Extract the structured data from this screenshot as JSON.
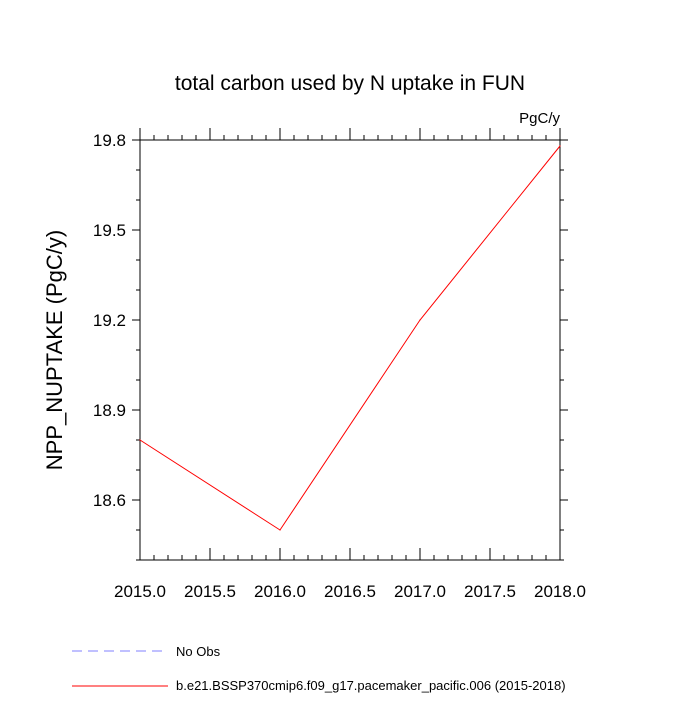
{
  "chart_data": {
    "type": "line",
    "title": "total carbon used by N uptake in FUN",
    "units_label": "PgC/y",
    "ylabel": "NPP_NUPTAKE  (PgC/y)",
    "xlabel": "",
    "xlim": [
      2015.0,
      2018.0
    ],
    "ylim": [
      18.4,
      19.8
    ],
    "x_ticks": [
      "2015.0",
      "2015.5",
      "2016.0",
      "2016.5",
      "2017.0",
      "2017.5",
      "2018.0"
    ],
    "y_ticks": [
      "18.6",
      "18.9",
      "19.2",
      "19.5",
      "19.8"
    ],
    "grid": false,
    "legend_position": "bottom-left",
    "series": [
      {
        "name": "No Obs",
        "color": "#8080ff",
        "dash": "dashed",
        "x": [],
        "values": []
      },
      {
        "name": "b.e21.BSSP370cmip6.f09_g17.pacemaker_pacific.006 (2015-2018)",
        "color": "#ff0000",
        "dash": "solid",
        "x": [
          2015,
          2016,
          2017,
          2018
        ],
        "values": [
          18.8,
          18.5,
          19.2,
          19.78
        ]
      }
    ]
  }
}
